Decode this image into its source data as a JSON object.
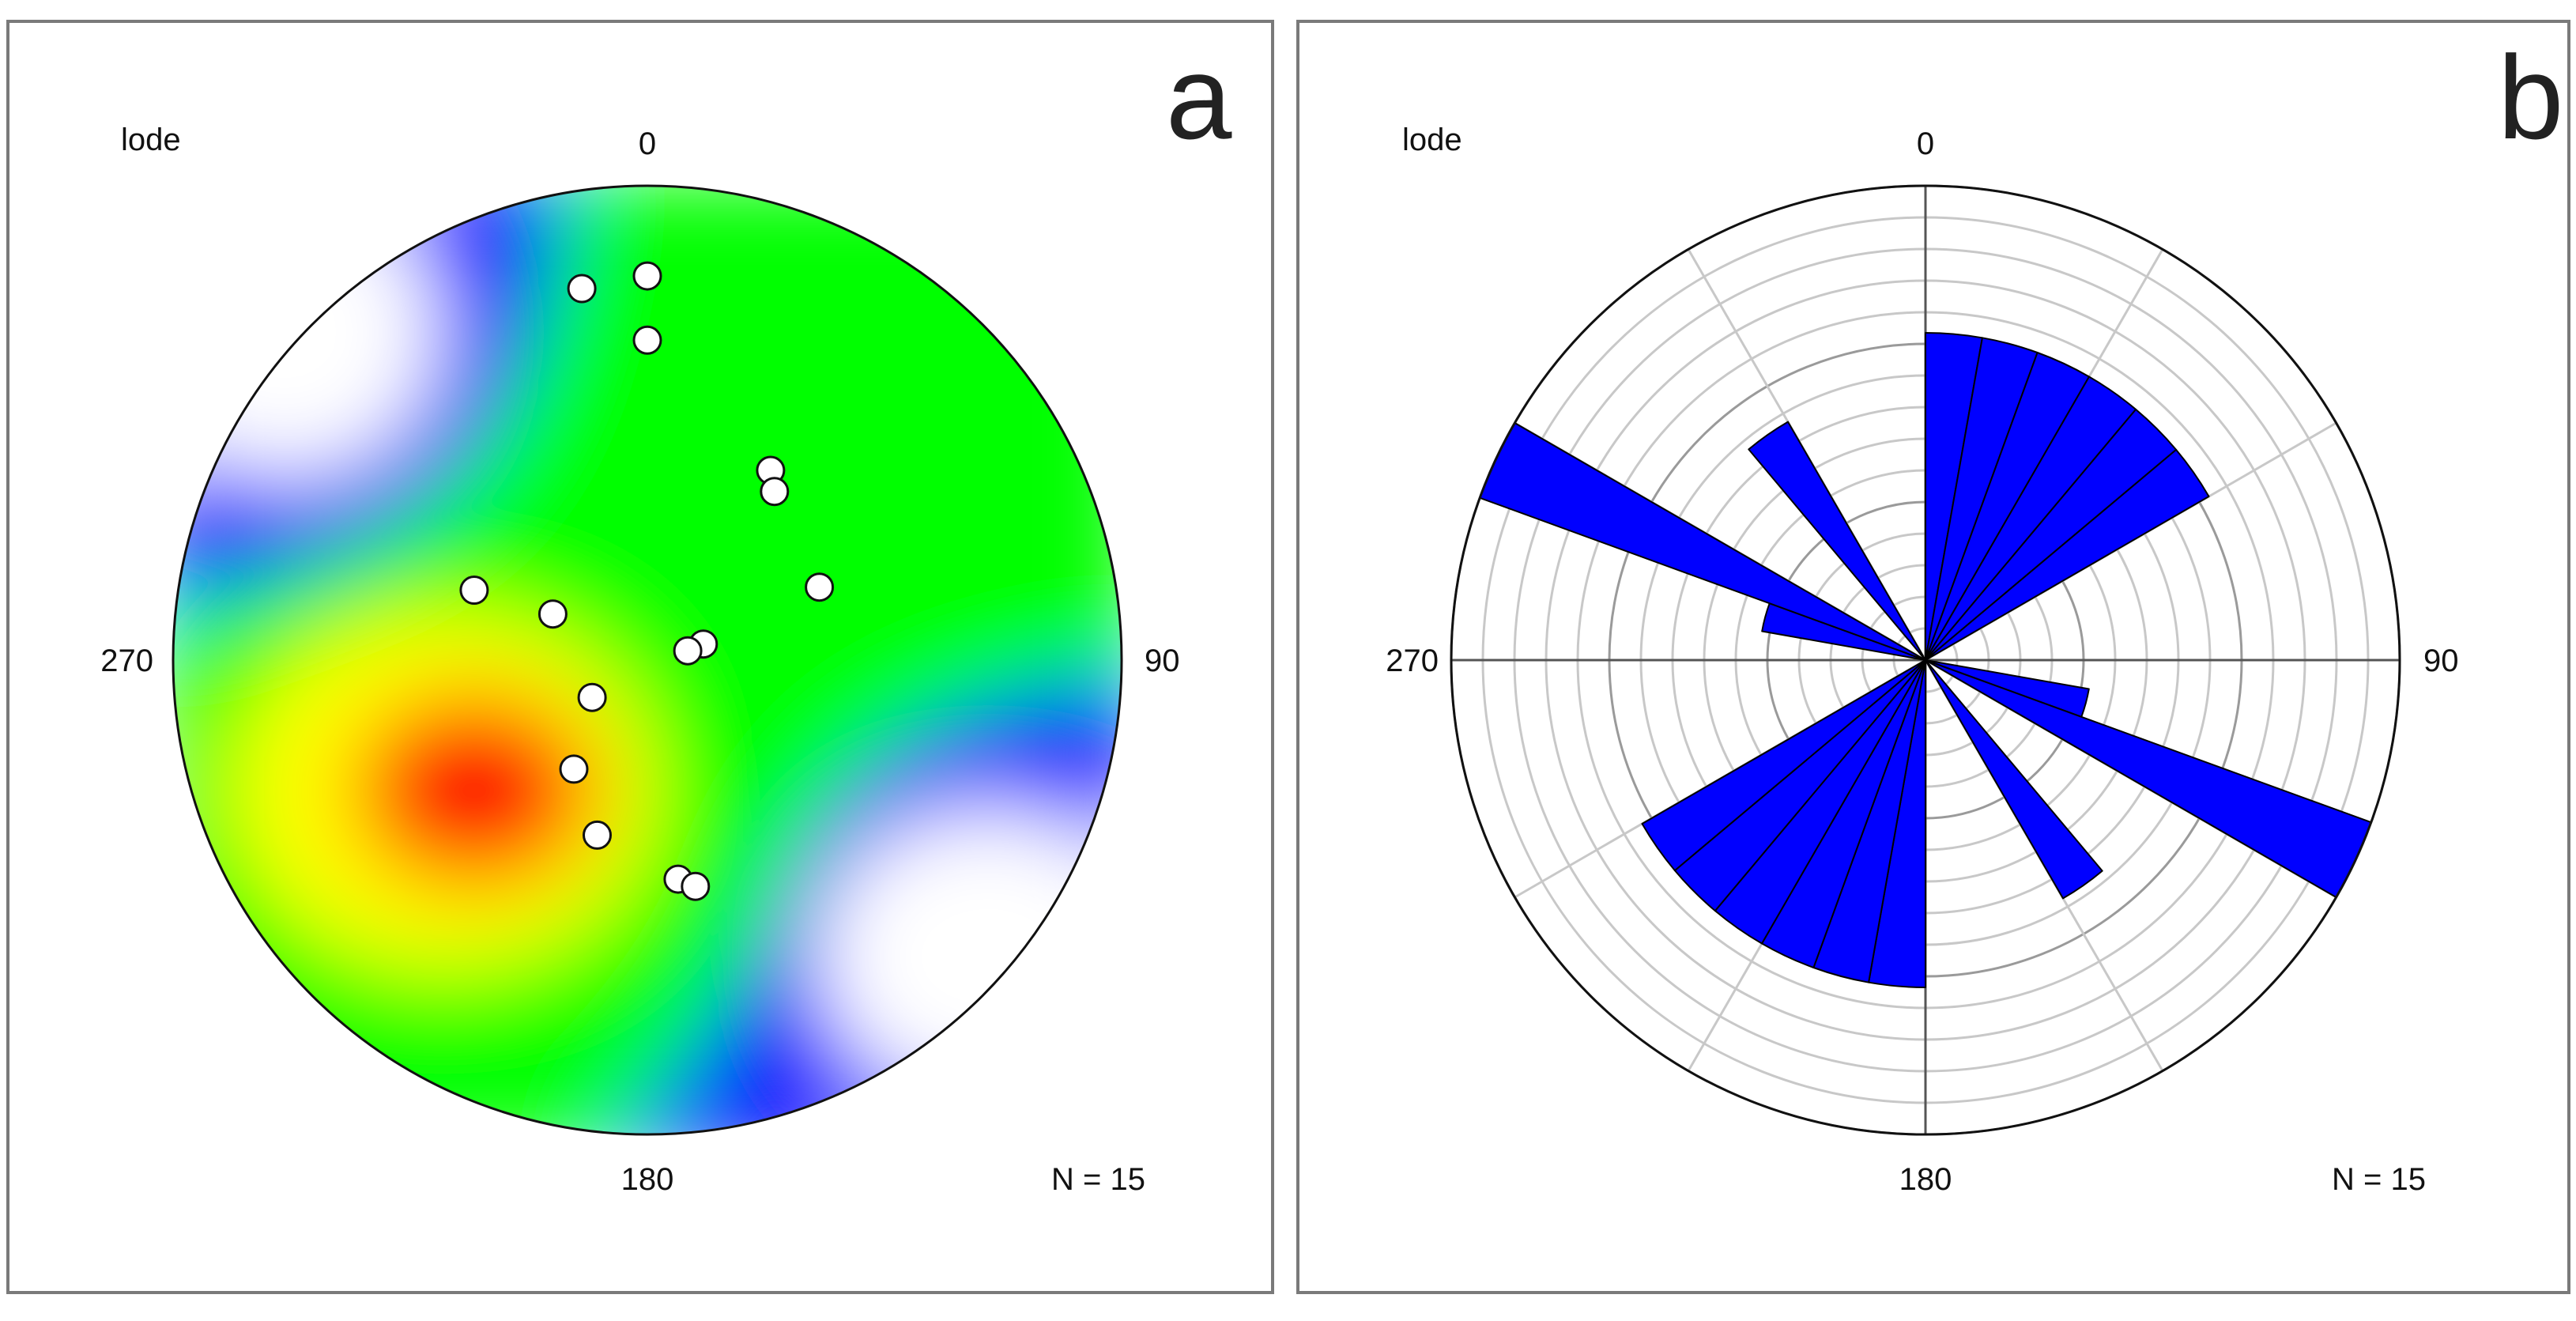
{
  "chart_data": [
    {
      "panel_letter": "a",
      "type": "scatter",
      "projection": "stereonet (lower hemisphere, density contoured)",
      "title": "lode",
      "n_label": "N = 15",
      "direction_labels": {
        "north": "0",
        "east": "90",
        "south": "180",
        "west": "270"
      },
      "density_colors": [
        "#ffffff",
        "#0000ff",
        "#00ff00",
        "#ffff00",
        "#ff0000"
      ],
      "points": [
        {
          "trend": 0,
          "plunge": 12
        },
        {
          "trend": 0,
          "plunge": 22
        },
        {
          "trend": 33,
          "plunge": 39
        },
        {
          "trend": 37,
          "plunge": 42
        },
        {
          "trend": 74,
          "plunge": 76
        },
        {
          "trend": 77,
          "plunge": 80
        },
        {
          "trend": 67,
          "plunge": 47
        },
        {
          "trend": 292,
          "plunge": 47
        },
        {
          "trend": 350,
          "plunge": 13
        },
        {
          "trend": 296,
          "plunge": 65
        },
        {
          "trend": 236,
          "plunge": 74
        },
        {
          "trend": 214,
          "plunge": 59
        },
        {
          "trend": 196,
          "plunge": 48
        },
        {
          "trend": 172,
          "plunge": 40
        },
        {
          "trend": 168,
          "plunge": 38
        }
      ]
    },
    {
      "panel_letter": "b",
      "type": "rose",
      "title": "lode",
      "n_label": "N = 15",
      "direction_labels": {
        "north": "0",
        "east": "90",
        "south": "180",
        "west": "270"
      },
      "petal_color": "#0000ff",
      "bin_width_deg": 10,
      "rmax": 1.0,
      "petals": [
        {
          "start": 0,
          "end": 10,
          "r": 0.69
        },
        {
          "start": 10,
          "end": 20,
          "r": 0.69
        },
        {
          "start": 20,
          "end": 30,
          "r": 0.69
        },
        {
          "start": 30,
          "end": 40,
          "r": 0.69
        },
        {
          "start": 40,
          "end": 50,
          "r": 0.69
        },
        {
          "start": 50,
          "end": 60,
          "r": 0.69
        },
        {
          "start": 100,
          "end": 110,
          "r": 0.35
        },
        {
          "start": 110,
          "end": 120,
          "r": 1.0
        },
        {
          "start": 140,
          "end": 150,
          "r": 0.58
        },
        {
          "start": 180,
          "end": 190,
          "r": 0.69
        },
        {
          "start": 190,
          "end": 200,
          "r": 0.69
        },
        {
          "start": 200,
          "end": 210,
          "r": 0.69
        },
        {
          "start": 210,
          "end": 220,
          "r": 0.69
        },
        {
          "start": 220,
          "end": 230,
          "r": 0.69
        },
        {
          "start": 230,
          "end": 240,
          "r": 0.69
        },
        {
          "start": 280,
          "end": 290,
          "r": 0.35
        },
        {
          "start": 290,
          "end": 300,
          "r": 1.0
        },
        {
          "start": 320,
          "end": 330,
          "r": 0.58
        }
      ]
    }
  ]
}
